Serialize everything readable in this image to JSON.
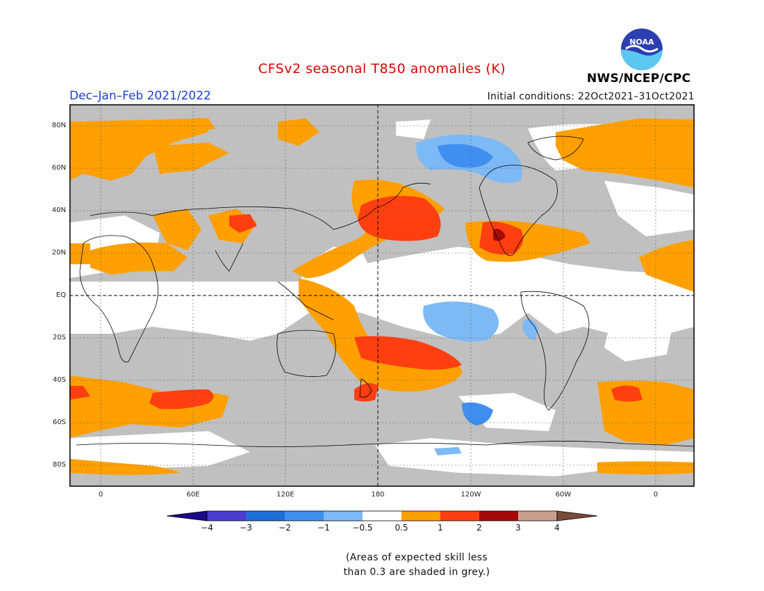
{
  "title": "CFSv2 seasonal T850 anomalies (K)",
  "season": "Dec–Jan–Feb 2021/2022",
  "initial_conditions": "Initial conditions: 22Oct2021–31Oct2021",
  "agency": "NWS/NCEP/CPC",
  "logo": {
    "text": "NOAA",
    "icon": "noaa-logo-icon"
  },
  "lat_labels": [
    "80N",
    "60N",
    "40N",
    "20N",
    "EQ",
    "20S",
    "40S",
    "60S",
    "80S"
  ],
  "lon_labels": [
    "0",
    "60E",
    "120E",
    "180",
    "120W",
    "60W",
    "0"
  ],
  "colorbar": {
    "ticks": [
      "−4",
      "−3",
      "−2",
      "−1",
      "−0.5",
      "0.5",
      "1",
      "2",
      "3",
      "4"
    ],
    "colors": [
      "#1a0a8c",
      "#4b3dd1",
      "#1e6fd9",
      "#3f8ff0",
      "#7db9f5",
      "#ffffff",
      "#ffa000",
      "#ff3f10",
      "#a50a0a",
      "#c9a090",
      "#7a4a3a"
    ]
  },
  "note_line1": "(Areas of expected skill less",
  "note_line2": "than 0.3 are shaded in grey.)",
  "colors": {
    "grey": "#c0c0c0",
    "orange": "#ffa000",
    "red": "#ff3f10",
    "darkred": "#a50a0a",
    "lightblue": "#7db9f5",
    "blue": "#3f8ff0",
    "title": "#e00000",
    "season": "#1a3fd6"
  }
}
